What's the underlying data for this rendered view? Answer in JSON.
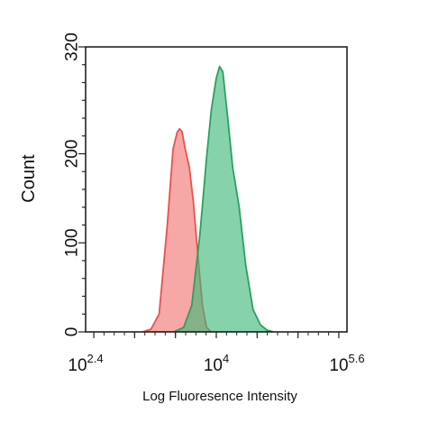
{
  "chart_data": {
    "type": "area",
    "title": "",
    "xlabel": "Log Fluoresence Intensity",
    "ylabel": "Count",
    "x_scale": "log10",
    "xlim_log10": [
      2.4,
      5.6
    ],
    "ylim": [
      0,
      320
    ],
    "grid": false,
    "y_ticks": [
      {
        "value": 0,
        "label": "0"
      },
      {
        "value": 100,
        "label": "100"
      },
      {
        "value": 200,
        "label": "200"
      },
      {
        "value": 320,
        "label": "320"
      }
    ],
    "x_ticks": [
      {
        "log10": 2.4,
        "base": "10",
        "exp": "2.4"
      },
      {
        "log10": 4,
        "base": "10",
        "exp": "4"
      },
      {
        "log10": 5.6,
        "base": "10",
        "exp": "5.6"
      }
    ],
    "series": [
      {
        "color": "#e8524f",
        "fill": "#f07270",
        "log10_x": [
          3.1,
          3.2,
          3.3,
          3.4,
          3.47,
          3.52,
          3.55,
          3.58,
          3.62,
          3.67,
          3.72,
          3.78,
          3.83,
          3.88,
          3.94
        ],
        "values": [
          0,
          3,
          20,
          120,
          205,
          224,
          228,
          225,
          205,
          185,
          145,
          80,
          30,
          5,
          0
        ]
      },
      {
        "color": "#2aa060",
        "fill": "#3cb878",
        "log10_x": [
          3.48,
          3.6,
          3.7,
          3.8,
          3.88,
          3.94,
          4.0,
          4.04,
          4.08,
          4.14,
          4.2,
          4.28,
          4.36,
          4.45,
          4.54,
          4.62,
          4.7
        ],
        "values": [
          0,
          5,
          30,
          110,
          195,
          250,
          285,
          298,
          292,
          240,
          185,
          140,
          75,
          25,
          8,
          2,
          0
        ]
      }
    ],
    "overlap_fill": "#a05a3e"
  }
}
